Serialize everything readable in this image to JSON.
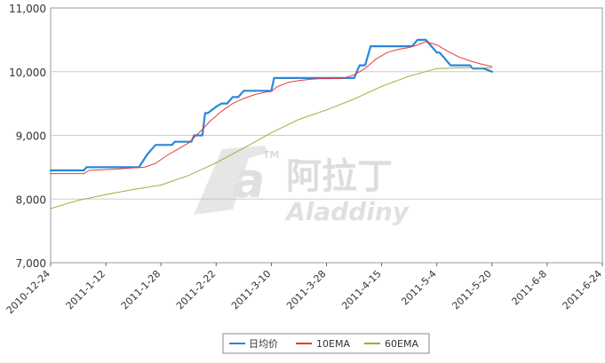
{
  "watermark": {
    "mark": "a",
    "tm": "TM",
    "chinese": "阿拉丁",
    "english": "Aladdiny"
  },
  "chart_data": {
    "type": "line",
    "title": "",
    "xlabel": "",
    "ylabel": "",
    "ylim": [
      7000,
      11000
    ],
    "y_ticks": [
      7000,
      8000,
      9000,
      10000,
      11000
    ],
    "y_tick_labels": [
      "7,000",
      "8,000",
      "9,000",
      "10,000",
      "11,000"
    ],
    "x_tick_labels": [
      "2010-12-24",
      "2011-1-12",
      "2011-1-28",
      "2011-2-22",
      "2011-3-10",
      "2011-3-28",
      "2011-4-15",
      "2011-5-4",
      "2011-5-20",
      "2011-6-8",
      "2011-6-24"
    ],
    "grid": true,
    "legend_position": "bottom-center",
    "series": [
      {
        "name": "日均价",
        "color": "#2b86d9",
        "x": [
          0,
          0.6,
          0.65,
          1.2,
          1.25,
          1.6,
          1.75,
          1.9,
          2.2,
          2.25,
          2.55,
          2.6,
          2.75,
          2.8,
          2.85,
          3.0,
          3.1,
          3.2,
          3.3,
          3.4,
          3.5,
          3.6,
          3.7,
          3.8,
          3.85,
          4.0,
          4.05,
          4.2,
          4.25,
          5.0,
          5.05,
          5.5,
          5.6,
          5.7,
          5.8,
          6.5,
          6.55,
          6.65,
          6.8,
          7.0,
          7.05,
          7.25,
          7.3,
          7.6,
          7.65,
          7.8,
          7.85,
          8.0
        ],
        "values": [
          8450,
          8450,
          8500,
          8500,
          8500,
          8500,
          8700,
          8850,
          8850,
          8900,
          8900,
          9000,
          9000,
          9350,
          9350,
          9450,
          9500,
          9500,
          9600,
          9600,
          9700,
          9700,
          9700,
          9700,
          9700,
          9700,
          9900,
          9900,
          9900,
          9900,
          9900,
          9900,
          10100,
          10100,
          10400,
          10400,
          10400,
          10500,
          10500,
          10300,
          10300,
          10100,
          10100,
          10100,
          10050,
          10050,
          10050,
          10000
        ]
      },
      {
        "name": "10EMA",
        "color": "#e83a3a",
        "x": [
          0,
          0.6,
          0.7,
          1.2,
          1.5,
          1.7,
          1.9,
          2.1,
          2.3,
          2.5,
          2.7,
          2.9,
          3.1,
          3.3,
          3.5,
          3.7,
          3.9,
          4.0,
          4.1,
          4.3,
          4.5,
          4.7,
          4.9,
          5.1,
          5.3,
          5.5,
          5.7,
          5.9,
          6.1,
          6.3,
          6.5,
          6.65,
          6.8,
          7.0,
          7.2,
          7.4,
          7.6,
          7.8,
          8.0
        ],
        "values": [
          8400,
          8400,
          8450,
          8470,
          8490,
          8500,
          8560,
          8680,
          8780,
          8880,
          9050,
          9230,
          9380,
          9500,
          9580,
          9640,
          9680,
          9690,
          9760,
          9830,
          9860,
          9880,
          9890,
          9890,
          9895,
          9950,
          10050,
          10200,
          10300,
          10350,
          10380,
          10420,
          10470,
          10420,
          10320,
          10230,
          10170,
          10120,
          10080
        ]
      },
      {
        "name": "60EMA",
        "color": "#8ab83a",
        "x": [
          0,
          0.5,
          1.0,
          1.5,
          2.0,
          2.5,
          3.0,
          3.5,
          4.0,
          4.5,
          5.0,
          5.5,
          6.0,
          6.5,
          7.0,
          7.5,
          8.0
        ],
        "values": [
          7850,
          7980,
          8070,
          8150,
          8220,
          8370,
          8570,
          8800,
          9040,
          9250,
          9400,
          9570,
          9770,
          9930,
          10050,
          10060,
          10060
        ]
      }
    ]
  }
}
